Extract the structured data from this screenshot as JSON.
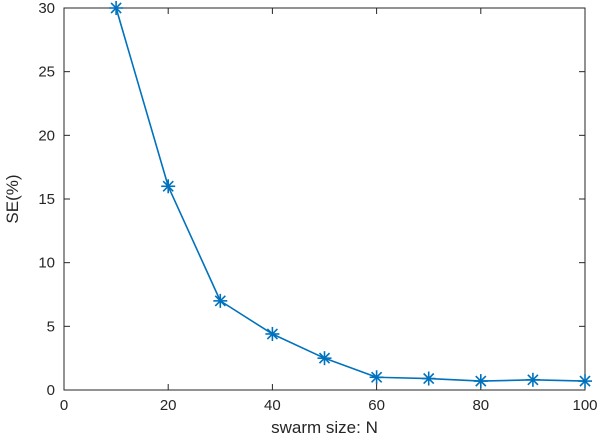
{
  "chart_data": {
    "type": "line",
    "title": "",
    "xlabel": "swarm size: N",
    "ylabel": "SE(%)",
    "x": [
      10,
      20,
      30,
      40,
      50,
      60,
      70,
      80,
      90,
      100
    ],
    "series": [
      {
        "name": "SE",
        "values": [
          30,
          16,
          7,
          4.4,
          2.5,
          1.0,
          0.9,
          0.7,
          0.8,
          0.7
        ],
        "color": "#0072BD",
        "marker": "asterisk"
      }
    ],
    "xlim": [
      0,
      100
    ],
    "ylim": [
      0,
      30
    ],
    "xticks": [
      0,
      20,
      40,
      60,
      80,
      100
    ],
    "yticks": [
      0,
      5,
      10,
      15,
      20,
      25,
      30
    ],
    "grid": false,
    "box": true,
    "legend": null
  },
  "colors": {
    "line": "#0072BD",
    "axis": "#262626",
    "tick_label": "#262626",
    "axis_label": "#262626",
    "background": "#ffffff"
  }
}
